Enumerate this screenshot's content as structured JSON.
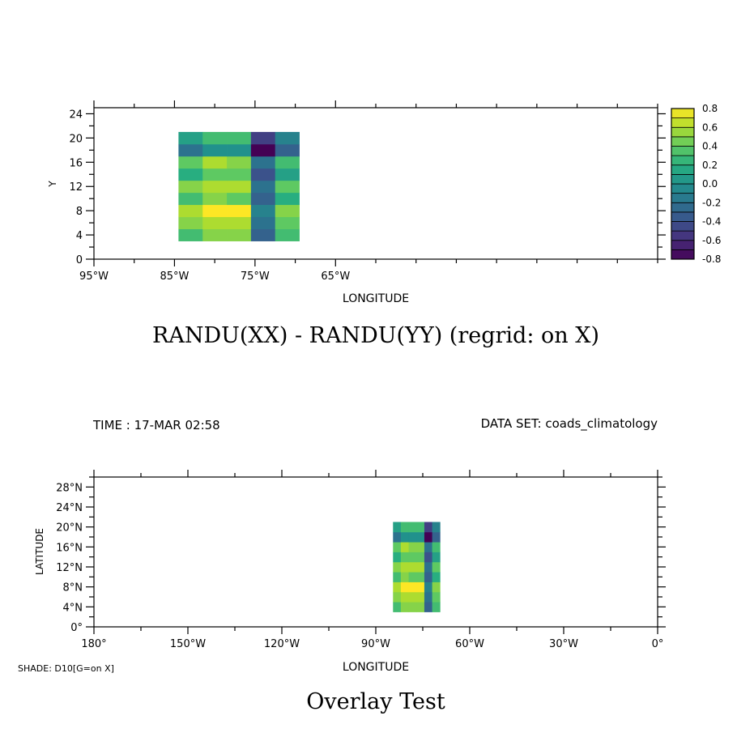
{
  "chart_data": [
    {
      "type": "heatmap",
      "title": "RANDU(XX) - RANDU(YY) (regrid: on X)",
      "xlabel": "LONGITUDE",
      "ylabel": "Y",
      "xlim": [
        -95,
        -25
      ],
      "ylim": [
        0,
        25
      ],
      "x_ticks": [
        -95,
        -85,
        -75,
        -65
      ],
      "x_tick_labels": [
        "95°W",
        "85°W",
        "75°W",
        "65°W"
      ],
      "y_ticks": [
        0,
        4,
        8,
        12,
        16,
        20,
        24
      ],
      "y_tick_labels": [
        "0",
        "4",
        "8",
        "12",
        "16",
        "20",
        "24"
      ],
      "x_edges": [
        -84.5,
        -81.5,
        -78.5,
        -75.5,
        -72.5,
        -69.5
      ],
      "y_edges": [
        3,
        5,
        7,
        9,
        11,
        13,
        15,
        17,
        19,
        21
      ],
      "values_bottom_to_top": [
        [
          0.3,
          0.5,
          0.5,
          -0.3,
          0.3
        ],
        [
          0.5,
          0.6,
          0.6,
          -0.2,
          0.4
        ],
        [
          0.6,
          0.8,
          0.8,
          -0.1,
          0.5
        ],
        [
          0.3,
          0.5,
          0.4,
          -0.3,
          0.2
        ],
        [
          0.5,
          0.6,
          0.6,
          -0.2,
          0.4
        ],
        [
          0.2,
          0.4,
          0.4,
          -0.4,
          0.1
        ],
        [
          0.4,
          0.6,
          0.5,
          -0.2,
          0.3
        ],
        [
          -0.2,
          0.0,
          0.0,
          -0.8,
          -0.3
        ],
        [
          0.1,
          0.3,
          0.3,
          -0.5,
          -0.1
        ]
      ],
      "colorbar": {
        "min": -0.8,
        "max": 0.8,
        "step": 0.1,
        "tick_values": [
          -0.8,
          -0.6,
          -0.4,
          -0.2,
          0.0,
          0.2,
          0.4,
          0.6,
          0.8
        ],
        "tick_labels": [
          "-0.8",
          "-0.6",
          "-0.4",
          "-0.2",
          "0.0",
          "0.2",
          "0.4",
          "0.6",
          "0.8"
        ]
      },
      "colormap": [
        "#440154",
        "#472d7b",
        "#3b528b",
        "#2c728e",
        "#21918c",
        "#28ae80",
        "#5ec962",
        "#addc30",
        "#fde725"
      ],
      "grid": false
    },
    {
      "type": "heatmap",
      "title": "Overlay Test",
      "xlabel": "LONGITUDE",
      "ylabel": "LATITUDE",
      "xlim": [
        -180,
        0
      ],
      "ylim": [
        0,
        30
      ],
      "x_ticks": [
        -180,
        -150,
        -120,
        -90,
        -60,
        -30,
        0
      ],
      "x_tick_labels": [
        "180°",
        "150°W",
        "120°W",
        "90°W",
        "60°W",
        "30°W",
        "0°"
      ],
      "y_ticks": [
        0,
        4,
        8,
        12,
        16,
        20,
        24,
        28
      ],
      "y_tick_labels": [
        "0°",
        "4°N",
        "8°N",
        "12°N",
        "16°N",
        "20°N",
        "24°N",
        "28°N"
      ],
      "x_edges": [
        -84.5,
        -82,
        -79.5,
        -77,
        -74.5,
        -72,
        -69.5
      ],
      "y_edges": [
        3,
        5,
        7,
        9,
        11,
        13,
        15,
        17,
        19,
        21
      ],
      "values_bottom_to_top": [
        [
          0.3,
          0.5,
          0.5,
          0.5,
          -0.3,
          0.3
        ],
        [
          0.5,
          0.6,
          0.6,
          0.6,
          -0.2,
          0.4
        ],
        [
          0.6,
          0.8,
          0.8,
          0.8,
          -0.1,
          0.5
        ],
        [
          0.3,
          0.5,
          0.4,
          0.4,
          -0.3,
          0.2
        ],
        [
          0.5,
          0.6,
          0.6,
          0.6,
          -0.2,
          0.4
        ],
        [
          0.2,
          0.4,
          0.4,
          0.4,
          -0.4,
          0.1
        ],
        [
          0.4,
          0.6,
          0.5,
          0.5,
          -0.2,
          0.3
        ],
        [
          -0.2,
          0.0,
          0.0,
          0.0,
          -0.8,
          -0.3
        ],
        [
          0.1,
          0.3,
          0.3,
          0.3,
          -0.5,
          -0.1
        ]
      ],
      "grid": false
    }
  ],
  "labels": {
    "time": "TIME : 17-MAR 02:58",
    "dataset": "DATA SET: coads_climatology",
    "shade": "SHADE: D10[G=on X]"
  }
}
